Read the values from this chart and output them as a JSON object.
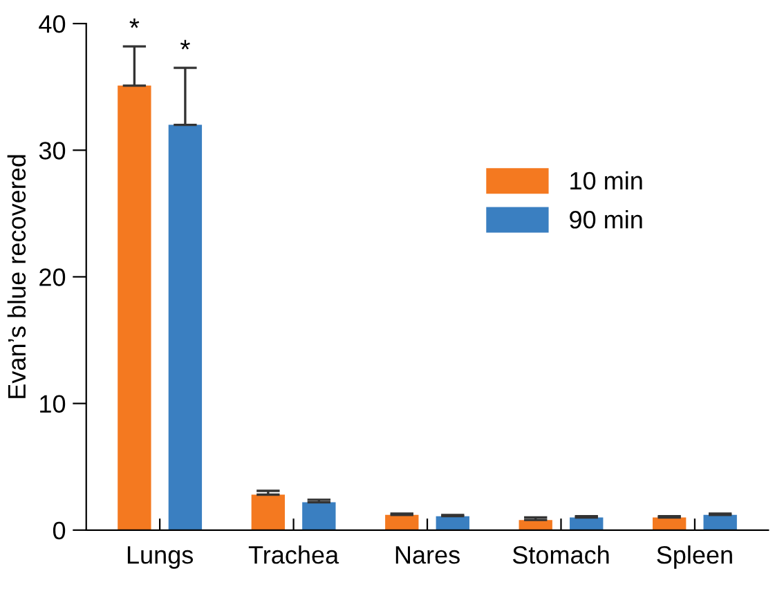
{
  "chart_data": {
    "type": "bar",
    "ylabel": "Evan’s blue recovered",
    "categories": [
      "Lungs",
      "Trachea",
      "Nares",
      "Stomach",
      "Spleen"
    ],
    "series": [
      {
        "name": "10 min",
        "color": "#f47920",
        "values": [
          35.1,
          2.8,
          1.2,
          0.8,
          1.0
        ],
        "errors": [
          [
            35.1,
            38.2
          ],
          [
            2.8,
            3.1
          ],
          [
            1.2,
            1.3
          ],
          [
            0.8,
            1.0
          ],
          [
            1.0,
            1.1
          ]
        ]
      },
      {
        "name": "90 min",
        "color": "#3a7fc1",
        "values": [
          32.0,
          2.2,
          1.1,
          1.0,
          1.2
        ],
        "errors": [
          [
            32.0,
            36.5
          ],
          [
            2.2,
            2.4
          ],
          [
            1.1,
            1.2
          ],
          [
            1.0,
            1.1
          ],
          [
            1.2,
            1.3
          ]
        ]
      }
    ],
    "ylim": [
      0,
      40
    ],
    "yticks": [
      0,
      10,
      20,
      30,
      40
    ],
    "grid": false,
    "legend": "right",
    "annotations": [
      "*",
      "*"
    ]
  }
}
